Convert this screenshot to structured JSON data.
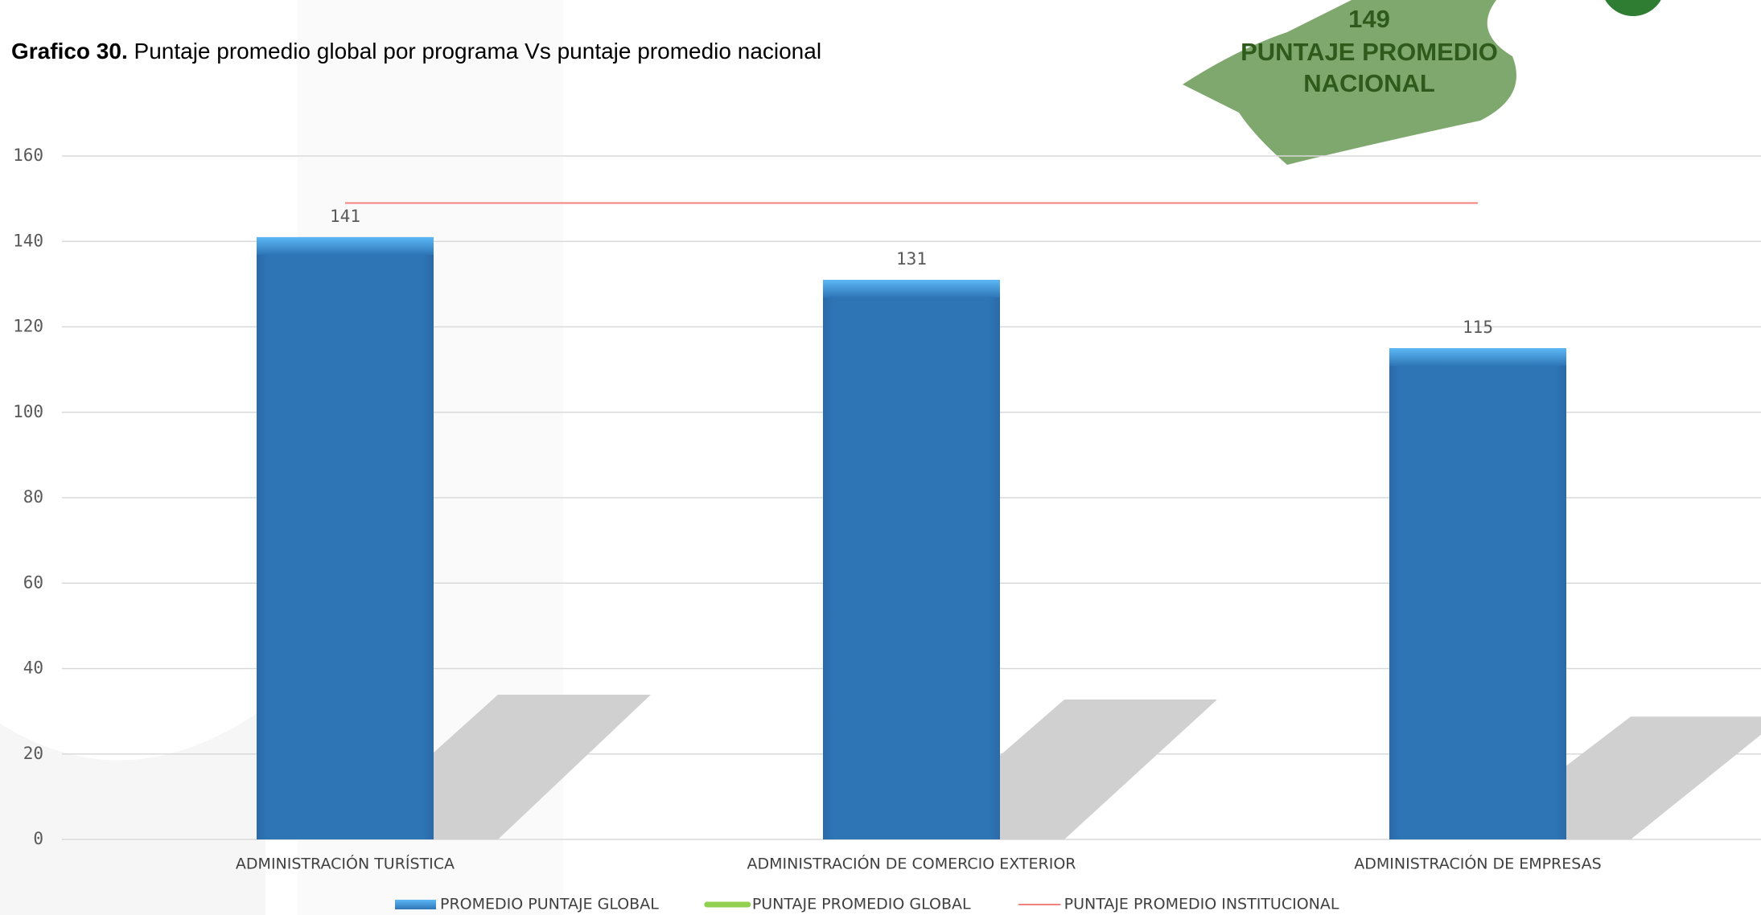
{
  "header": {
    "label": "Grafico 30.",
    "title": "Puntaje promedio global por programa Vs puntaje promedio nacional"
  },
  "badge": {
    "value": "149",
    "line1": "PUNTAJE PROMEDIO",
    "line2": "NACIONAL"
  },
  "chart_data": {
    "type": "bar",
    "categories": [
      "ADMINISTRACIÓN TURÍSTICA",
      "ADMINISTRACIÓN DE COMERCIO EXTERIOR",
      "ADMINISTRACIÓN DE EMPRESAS"
    ],
    "series": [
      {
        "name": "PROMEDIO PUNTAJE GLOBAL",
        "color": "#2e75b6",
        "values": [
          141,
          131,
          115
        ]
      },
      {
        "name": "PUNTAJE PROMEDIO GLOBAL",
        "color": "#92d050",
        "values": [
          null,
          null,
          null
        ],
        "type": "line"
      },
      {
        "name": "PUNTAJE PROMEDIO INSTITUCIONAL",
        "color": "#f4817d",
        "values": [
          149,
          149,
          149
        ],
        "type": "line"
      }
    ],
    "ylim": [
      0,
      160
    ],
    "yticks": [
      0,
      20,
      40,
      60,
      80,
      100,
      120,
      140,
      160
    ],
    "grid": true,
    "legend": "bottom"
  }
}
